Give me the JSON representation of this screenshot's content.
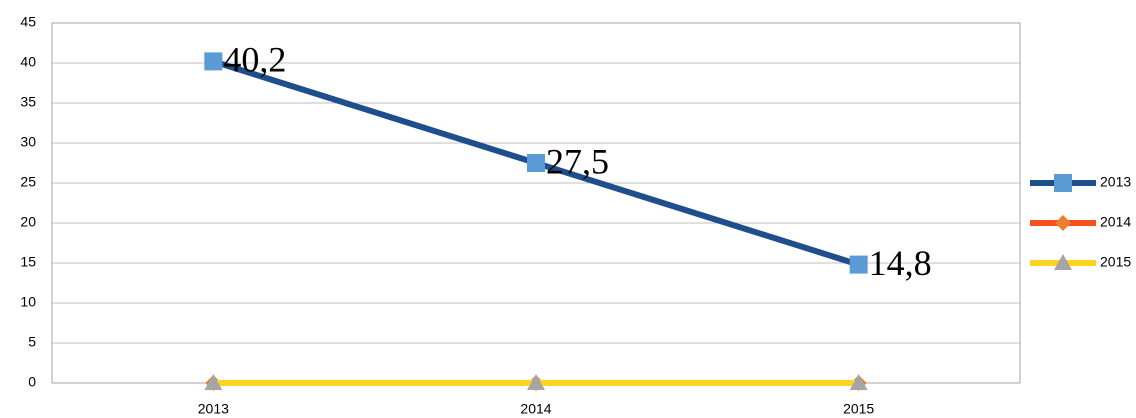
{
  "chart_data": {
    "type": "line",
    "categories": [
      "2013",
      "2014",
      "2015"
    ],
    "series": [
      {
        "name": "2013",
        "color": "#1f4e8c",
        "marker": "square",
        "marker_color": "#5b9bd5",
        "values": [
          40.2,
          27.5,
          14.8
        ],
        "value_labels": [
          "40,2",
          "27,5",
          "14,8"
        ]
      },
      {
        "name": "2014",
        "color": "#f4511e",
        "marker": "diamond",
        "marker_color": "#ed7d31",
        "values": [
          0,
          0,
          0
        ]
      },
      {
        "name": "2015",
        "color": "#ffd320",
        "marker": "triangle",
        "marker_color": "#a5a5a5",
        "values": [
          0,
          0,
          0
        ]
      }
    ],
    "ylim": [
      0,
      45
    ],
    "yticks": [
      0,
      5,
      10,
      15,
      20,
      25,
      30,
      35,
      40,
      45
    ],
    "grid": true,
    "legend": "right"
  }
}
